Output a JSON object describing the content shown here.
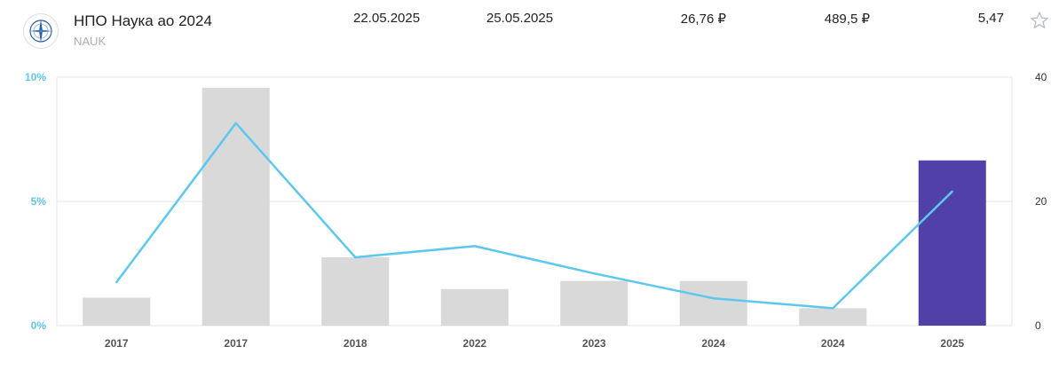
{
  "stock": {
    "name": "НПО Наука ао 2024",
    "ticker": "NAUK",
    "date_1": "22.05.2025",
    "date_2": "25.05.2025",
    "price": "26,76 ₽",
    "dividend": "489,5 ₽",
    "yield": "5,47"
  },
  "icons": {
    "star": "star-outline-icon",
    "logo": "company-logo-icon"
  },
  "colors": {
    "bar_default": "#d9d9d9",
    "bar_highlight": "#5140a8",
    "line": "#5cc8ef",
    "left_axis_text": "#5cc8ef",
    "right_axis_text": "#333333",
    "grid": "#e6e6e6"
  },
  "chart_data": {
    "type": "bar+line",
    "categories": [
      "2017",
      "2017",
      "2018",
      "2022",
      "2023",
      "2024",
      "2024",
      "2025"
    ],
    "series": [
      {
        "type": "bar",
        "axis": "right",
        "values": [
          4.5,
          38.3,
          11.0,
          5.9,
          7.2,
          7.2,
          2.8,
          26.6
        ],
        "highlight_index": 7
      },
      {
        "type": "line",
        "axis": "left",
        "values": [
          1.75,
          8.15,
          2.75,
          3.2,
          2.1,
          1.1,
          0.7,
          5.4
        ]
      }
    ],
    "left_axis": {
      "ticks": [
        "0%",
        "5%",
        "10%"
      ],
      "min": 0,
      "max": 10
    },
    "right_axis": {
      "ticks": [
        "0",
        "20",
        "40"
      ],
      "min": 0,
      "max": 40
    },
    "grid": true
  }
}
